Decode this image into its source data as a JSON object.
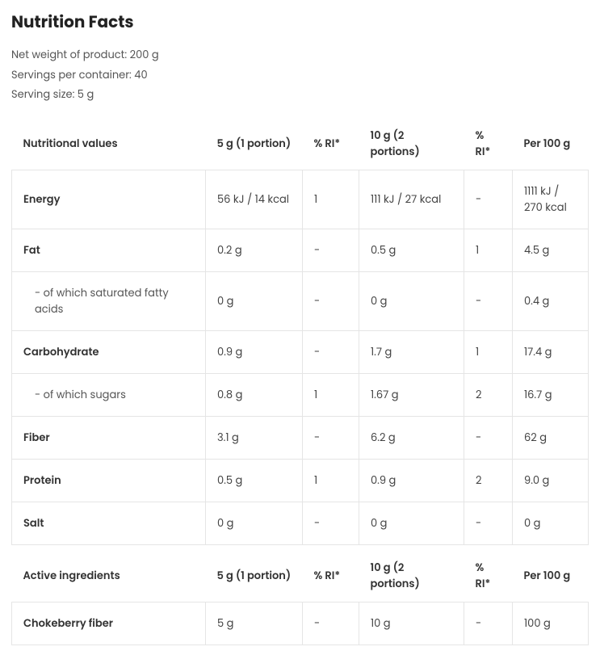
{
  "title": "Nutrition Facts",
  "meta": {
    "net_weight": "Net weight of product: 200 g",
    "servings_per_container": "Servings per container: 40",
    "serving_size": "Serving size: 5 g"
  },
  "nutritional": {
    "headers": {
      "name": "Nutritional values",
      "v1": "5 g (1 portion)",
      "ri1": "% RI*",
      "v2": "10 g (2 portions)",
      "ri2": "% RI*",
      "per100": "Per 100 g"
    },
    "rows": [
      {
        "name": "Energy",
        "sub": false,
        "v1": "56 kJ / 14 kcal",
        "ri1": "1",
        "v2": "111 kJ / 27 kcal",
        "ri2": "-",
        "per100": "1111 kJ / 270 kcal"
      },
      {
        "name": "Fat",
        "sub": false,
        "v1": "0.2 g",
        "ri1": "-",
        "v2": "0.5 g",
        "ri2": "1",
        "per100": "4.5 g"
      },
      {
        "name": "   - of which saturated fatty acids",
        "sub": true,
        "v1": "0 g",
        "ri1": "-",
        "v2": "0 g",
        "ri2": "-",
        "per100": "0.4 g"
      },
      {
        "name": "Carbohydrate",
        "sub": false,
        "v1": "0.9 g",
        "ri1": "-",
        "v2": "1.7 g",
        "ri2": "1",
        "per100": "17.4 g"
      },
      {
        "name": "   - of which sugars",
        "sub": true,
        "v1": "0.8 g",
        "ri1": "1",
        "v2": "1.67 g",
        "ri2": "2",
        "per100": "16.7 g"
      },
      {
        "name": "Fiber",
        "sub": false,
        "v1": "3.1 g",
        "ri1": "-",
        "v2": "6.2 g",
        "ri2": "-",
        "per100": "62 g"
      },
      {
        "name": "Protein",
        "sub": false,
        "v1": "0.5 g",
        "ri1": "1",
        "v2": "0.9 g",
        "ri2": "2",
        "per100": "9.0 g"
      },
      {
        "name": "Salt",
        "sub": false,
        "v1": "0 g",
        "ri1": "-",
        "v2": "0 g",
        "ri2": "-",
        "per100": "0 g"
      }
    ]
  },
  "active": {
    "headers": {
      "name": "Active ingredients",
      "v1": "5 g (1 portion)",
      "ri1": "% RI*",
      "v2": "10 g (2 portions)",
      "ri2": "% RI*",
      "per100": "Per 100 g"
    },
    "rows": [
      {
        "name": "Chokeberry fiber",
        "sub": false,
        "v1": "5 g",
        "ri1": "-",
        "v2": "10 g",
        "ri2": "-",
        "per100": "100 g"
      }
    ]
  },
  "style": {
    "border_color": "#e5e5e5",
    "text_color": "#444444",
    "header_color": "#333333",
    "background": "#ffffff",
    "font_size_body": 13,
    "font_size_title": 20,
    "cell_padding_v": 16,
    "cell_padding_h": 14
  }
}
